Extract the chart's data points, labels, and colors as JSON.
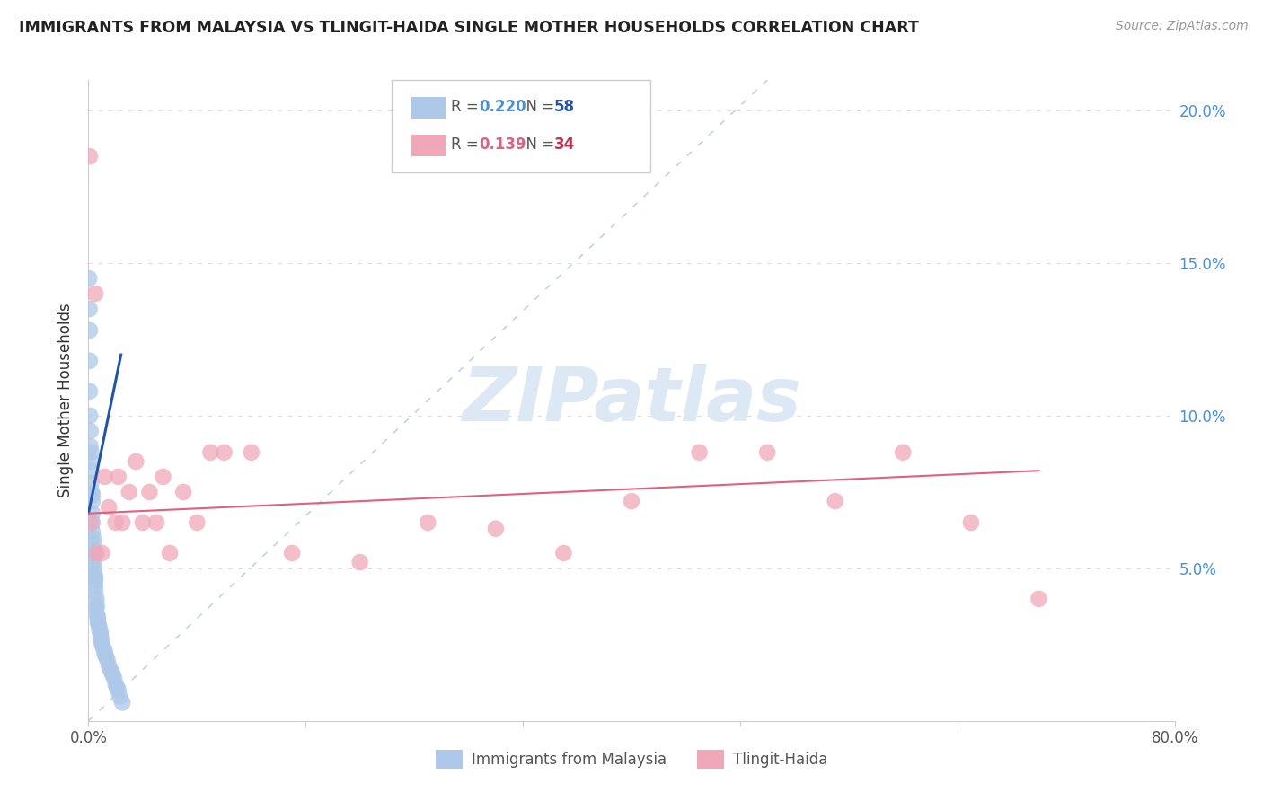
{
  "title": "IMMIGRANTS FROM MALAYSIA VS TLINGIT-HAIDA SINGLE MOTHER HOUSEHOLDS CORRELATION CHART",
  "source": "Source: ZipAtlas.com",
  "ylabel": "Single Mother Households",
  "legend_blue_r": "0.220",
  "legend_blue_n": "58",
  "legend_pink_r": "0.139",
  "legend_pink_n": "34",
  "blue_color": "#adc8e8",
  "blue_line_color": "#2255aa",
  "pink_color": "#f0a8b8",
  "pink_line_color": "#e06080",
  "diag_line_color": "#aabbd8",
  "watermark_color": "#dde8f5",
  "ytick_color": "#4a90d9",
  "xtick_color": "#555555",
  "ylabel_color": "#333333",
  "grid_color": "#dddddd",
  "blue_scatter_x": [
    0.0005,
    0.0008,
    0.001,
    0.001,
    0.001,
    0.0012,
    0.0015,
    0.0015,
    0.002,
    0.002,
    0.002,
    0.002,
    0.0025,
    0.003,
    0.003,
    0.003,
    0.003,
    0.003,
    0.0035,
    0.004,
    0.004,
    0.004,
    0.004,
    0.004,
    0.0045,
    0.005,
    0.005,
    0.005,
    0.005,
    0.006,
    0.006,
    0.006,
    0.006,
    0.007,
    0.007,
    0.007,
    0.008,
    0.008,
    0.009,
    0.009,
    0.009,
    0.01,
    0.01,
    0.011,
    0.012,
    0.012,
    0.013,
    0.014,
    0.015,
    0.016,
    0.017,
    0.018,
    0.019,
    0.02,
    0.021,
    0.022,
    0.023,
    0.025
  ],
  "blue_scatter_y": [
    0.145,
    0.135,
    0.128,
    0.118,
    0.108,
    0.1,
    0.095,
    0.09,
    0.088,
    0.085,
    0.082,
    0.078,
    0.075,
    0.074,
    0.072,
    0.068,
    0.065,
    0.062,
    0.06,
    0.058,
    0.056,
    0.054,
    0.052,
    0.05,
    0.048,
    0.047,
    0.046,
    0.044,
    0.042,
    0.04,
    0.038,
    0.037,
    0.035,
    0.034,
    0.033,
    0.032,
    0.031,
    0.03,
    0.029,
    0.028,
    0.027,
    0.026,
    0.025,
    0.024,
    0.023,
    0.022,
    0.021,
    0.02,
    0.018,
    0.017,
    0.016,
    0.015,
    0.014,
    0.012,
    0.011,
    0.01,
    0.008,
    0.006
  ],
  "pink_scatter_x": [
    0.001,
    0.002,
    0.005,
    0.006,
    0.01,
    0.012,
    0.015,
    0.02,
    0.022,
    0.025,
    0.03,
    0.035,
    0.04,
    0.045,
    0.05,
    0.055,
    0.06,
    0.07,
    0.08,
    0.09,
    0.1,
    0.12,
    0.15,
    0.2,
    0.25,
    0.3,
    0.35,
    0.4,
    0.45,
    0.5,
    0.55,
    0.6,
    0.65,
    0.7
  ],
  "pink_scatter_y": [
    0.185,
    0.065,
    0.14,
    0.055,
    0.055,
    0.08,
    0.07,
    0.065,
    0.08,
    0.065,
    0.075,
    0.085,
    0.065,
    0.075,
    0.065,
    0.08,
    0.055,
    0.075,
    0.065,
    0.088,
    0.088,
    0.088,
    0.055,
    0.052,
    0.065,
    0.063,
    0.055,
    0.072,
    0.088,
    0.088,
    0.072,
    0.088,
    0.065,
    0.04
  ],
  "blue_line_x": [
    0.0,
    0.024
  ],
  "blue_line_y": [
    0.068,
    0.12
  ],
  "pink_line_x": [
    0.0,
    0.7
  ],
  "pink_line_y": [
    0.068,
    0.082
  ],
  "diag_line_x": [
    0.0,
    0.5
  ],
  "diag_line_y": [
    0.0,
    0.21
  ],
  "xmin": 0.0,
  "xmax": 0.8,
  "ymin": 0.0,
  "ymax": 0.21,
  "yticks": [
    0.05,
    0.1,
    0.15,
    0.2
  ],
  "ytick_labels": [
    "5.0%",
    "10.0%",
    "15.0%",
    "20.0%"
  ],
  "xtick_positions": [
    0.0,
    0.16,
    0.32,
    0.48,
    0.64,
    0.8
  ],
  "xtick_labels": [
    "0.0%",
    "",
    "",
    "",
    "",
    "80.0%"
  ],
  "background_color": "#ffffff"
}
